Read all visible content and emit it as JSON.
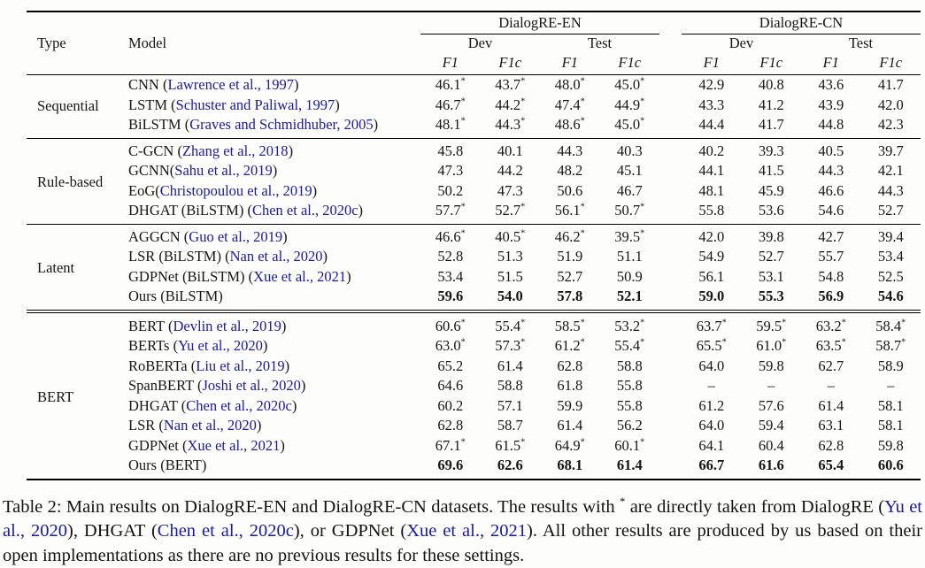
{
  "colors": {
    "citation_blue": "#1a1a9c",
    "text_black": "#161616",
    "rule_black": "#000000"
  },
  "table": {
    "headers": {
      "type": "Type",
      "model": "Model",
      "dataset_en": "DialogRE-EN",
      "dataset_cn": "DialogRE-CN",
      "dev": "Dev",
      "test": "Test",
      "f1": "F1",
      "f1c": "F1c"
    },
    "groups": [
      {
        "type": "Sequential",
        "rows": [
          {
            "name": "CNN",
            "cite": "Lawrence et al., 1997",
            "values": [
              "46.1*",
              "43.7*",
              "48.0*",
              "45.0*",
              "42.9",
              "40.8",
              "43.6",
              "41.7"
            ]
          },
          {
            "name": "LSTM",
            "cite": "Schuster and Paliwal, 1997",
            "values": [
              "46.7*",
              "44.2*",
              "47.4*",
              "44.9*",
              "43.3",
              "41.2",
              "43.9",
              "42.0"
            ]
          },
          {
            "name": "BiLSTM",
            "cite": "Graves and Schmidhuber, 2005",
            "values": [
              "48.1*",
              "44.3*",
              "48.6*",
              "45.0*",
              "44.4",
              "41.7",
              "44.8",
              "42.3"
            ]
          }
        ]
      },
      {
        "type": "Rule-based",
        "rule_top": "single",
        "rows": [
          {
            "name": "C-GCN",
            "cite": "Zhang et al., 2018",
            "values": [
              "45.8",
              "40.1",
              "44.3",
              "40.3",
              "40.2",
              "39.3",
              "40.5",
              "39.7"
            ]
          },
          {
            "name": "GCNN",
            "cite": "Sahu et al., 2019",
            "nsp": true,
            "values": [
              "47.3",
              "44.2",
              "48.2",
              "45.1",
              "44.1",
              "41.5",
              "44.3",
              "42.1"
            ]
          },
          {
            "name": "EoG",
            "cite": "Christopoulou et al., 2019",
            "nsp": true,
            "values": [
              "50.2",
              "47.3",
              "50.6",
              "46.7",
              "48.1",
              "45.9",
              "46.6",
              "44.3"
            ]
          },
          {
            "name": "DHGAT (BiLSTM)",
            "cite": "Chen et al., 2020c",
            "values": [
              "57.7*",
              "52.7*",
              "56.1*",
              "50.7*",
              "55.8",
              "53.6",
              "54.6",
              "52.7"
            ]
          }
        ]
      },
      {
        "type": "Latent",
        "rule_top": "single",
        "rows": [
          {
            "name": "AGGCN",
            "cite": "Guo et al., 2019",
            "values": [
              "46.6*",
              "40.5*",
              "46.2*",
              "39.5*",
              "42.0",
              "39.8",
              "42.7",
              "39.4"
            ]
          },
          {
            "name": "LSR (BiLSTM)",
            "cite": "Nan et al., 2020",
            "values": [
              "52.8",
              "51.3",
              "51.9",
              "51.1",
              "54.9",
              "52.7",
              "55.7",
              "53.4"
            ]
          },
          {
            "name": "GDPNet (BiLSTM)",
            "cite": "Xue et al., 2021",
            "values": [
              "53.4",
              "51.5",
              "52.7",
              "50.9",
              "56.1",
              "53.1",
              "54.8",
              "52.5"
            ]
          },
          {
            "name": "Ours (BiLSTM)",
            "cite": null,
            "bold": true,
            "values": [
              "59.6",
              "54.0",
              "57.8",
              "52.1",
              "59.0",
              "55.3",
              "56.9",
              "54.6"
            ]
          }
        ]
      },
      {
        "type": "BERT",
        "rule_top": "double",
        "rows": [
          {
            "name": "BERT",
            "cite": "Devlin et al., 2019",
            "values": [
              "60.6*",
              "55.4*",
              "58.5*",
              "53.2*",
              "63.7*",
              "59.5*",
              "63.2*",
              "58.4*"
            ]
          },
          {
            "name": "BERTs",
            "cite": "Yu et al., 2020",
            "values": [
              "63.0*",
              "57.3*",
              "61.2*",
              "55.4*",
              "65.5*",
              "61.0*",
              "63.5*",
              "58.7*"
            ]
          },
          {
            "name": "RoBERTa",
            "cite": "Liu et al., 2019",
            "values": [
              "65.2",
              "61.4",
              "62.8",
              "58.8",
              "64.0",
              "59.8",
              "62.7",
              "58.9"
            ]
          },
          {
            "name": "SpanBERT",
            "cite": "Joshi et al., 2020",
            "values": [
              "64.6",
              "58.8",
              "61.8",
              "55.8",
              "–",
              "–",
              "–",
              "–"
            ]
          },
          {
            "name": "DHGAT",
            "cite": "Chen et al., 2020c",
            "values": [
              "60.2",
              "57.1",
              "59.9",
              "55.8",
              "61.2",
              "57.6",
              "61.4",
              "58.1"
            ]
          },
          {
            "name": "LSR",
            "cite": "Nan et al., 2020",
            "values": [
              "62.8",
              "58.7",
              "61.4",
              "56.2",
              "64.0",
              "59.4",
              "63.1",
              "58.1"
            ]
          },
          {
            "name": "GDPNet",
            "cite": "Xue et al., 2021",
            "values": [
              "67.1*",
              "61.5*",
              "64.9*",
              "60.1*",
              "64.1",
              "60.4",
              "62.8",
              "59.8"
            ]
          },
          {
            "name": "Ours (BERT)",
            "cite": null,
            "bold": true,
            "values": [
              "69.6",
              "62.6",
              "68.1",
              "61.4",
              "66.7",
              "61.6",
              "65.4",
              "60.6"
            ]
          }
        ]
      }
    ]
  },
  "caption": {
    "segments": [
      {
        "style": "plain",
        "text": "Table 2: Main results on DialogRE-EN and DialogRE-CN datasets. The results with "
      },
      {
        "style": "sup",
        "text": "*"
      },
      {
        "style": "plain",
        "text": " are directly taken from DialogRE ("
      },
      {
        "style": "cite",
        "text": "Yu et al., 2020"
      },
      {
        "style": "plain",
        "text": "), DHGAT ("
      },
      {
        "style": "cite",
        "text": "Chen et al., 2020c"
      },
      {
        "style": "plain",
        "text": "), or GDPNet ("
      },
      {
        "style": "cite",
        "text": "Xue et al., 2021"
      },
      {
        "style": "plain",
        "text": "). All other results are produced by us based on their open implementations as there are no previous results for these settings."
      }
    ]
  }
}
